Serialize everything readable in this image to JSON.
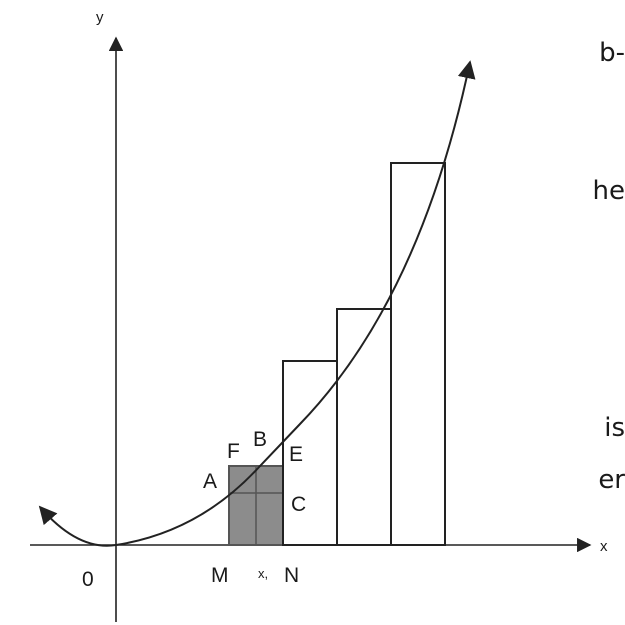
{
  "side_text": {
    "line1": "b-",
    "line2": "he",
    "line3": "is",
    "line4": "er"
  },
  "axes": {
    "x_label": "x",
    "y_label": "y",
    "origin_label": "0"
  },
  "points": {
    "A": "A",
    "B": "B",
    "C": "C",
    "E": "E",
    "F": "F",
    "M": "M",
    "N": "N",
    "xi": "x,"
  },
  "colors": {
    "shaded": "#8c8c8c",
    "shaded_stroke": "#555555",
    "line": "#222222"
  }
}
